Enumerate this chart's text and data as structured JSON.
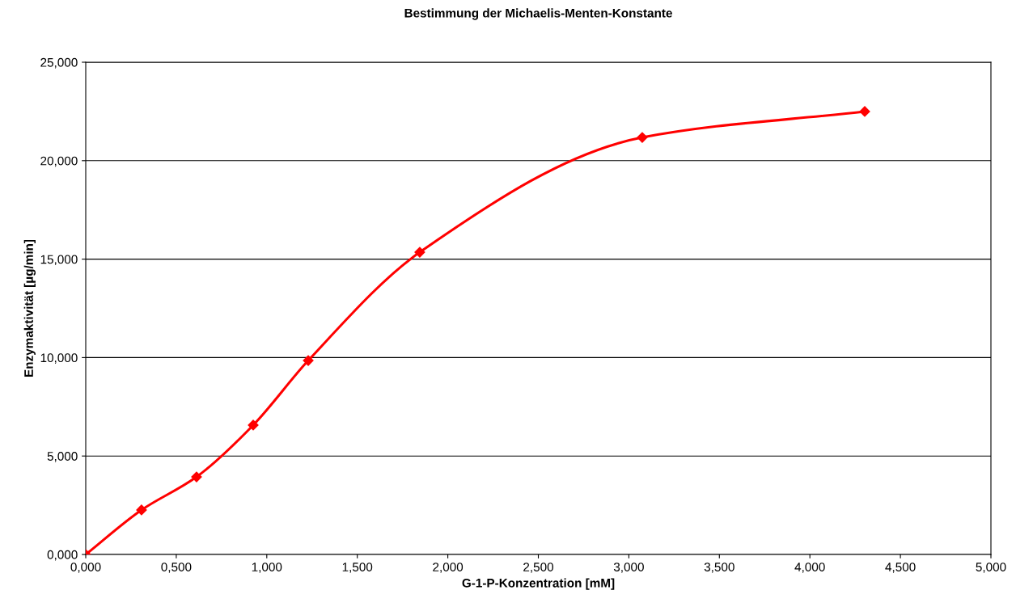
{
  "chart_data": {
    "type": "line",
    "title": "Bestimmung der Michaelis-Menten-Konstante",
    "xlabel": "G-1-P-Konzentration [mM]",
    "ylabel": "Enzymaktivität [µg/min]",
    "series": [
      {
        "color": "#ff0000",
        "x": [
          0,
          0.308,
          0.612,
          0.925,
          1.229,
          1.845,
          3.074,
          4.303
        ],
        "values": [
          0,
          2.26,
          3.94,
          6.57,
          9.85,
          15.35,
          21.18,
          22.5
        ]
      }
    ],
    "xlim": [
      0,
      5
    ],
    "ylim": [
      0,
      25
    ],
    "xticks": [
      {
        "value": 0,
        "label": "0,000"
      },
      {
        "value": 0.5,
        "label": "0,500"
      },
      {
        "value": 1,
        "label": "1,000"
      },
      {
        "value": 1.5,
        "label": "1,500"
      },
      {
        "value": 2,
        "label": "2,000"
      },
      {
        "value": 2.5,
        "label": "2,500"
      },
      {
        "value": 3,
        "label": "3,000"
      },
      {
        "value": 3.5,
        "label": "3,500"
      },
      {
        "value": 4,
        "label": "4,000"
      },
      {
        "value": 4.5,
        "label": "4,500"
      },
      {
        "value": 5,
        "label": "5,000"
      }
    ],
    "yticks": [
      {
        "value": 0,
        "label": "0,000"
      },
      {
        "value": 5,
        "label": "5,000"
      },
      {
        "value": 10,
        "label": "10,000"
      },
      {
        "value": 15,
        "label": "15,000"
      },
      {
        "value": 20,
        "label": "20,000"
      },
      {
        "value": 25,
        "label": "25,000"
      }
    ],
    "grid": "y",
    "marker": "diamond",
    "line_style": "solid"
  }
}
